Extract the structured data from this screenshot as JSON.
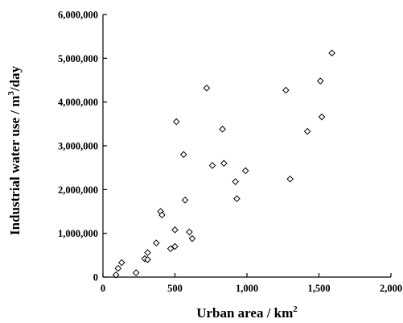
{
  "chart_data": {
    "type": "scatter",
    "title": "",
    "xlabel": "Urban area / km",
    "xlabel_sup": "2",
    "ylabel": "Industrial water use / m",
    "ylabel_sup": "3",
    "ylabel_tail": "/day",
    "xlim": [
      0,
      2000
    ],
    "ylim": [
      0,
      6000000
    ],
    "xticks": [
      0,
      500,
      1000,
      1500,
      2000
    ],
    "xtick_labels": [
      "0",
      "500",
      "1,000",
      "1,500",
      "2,000"
    ],
    "yticks": [
      0,
      1000000,
      2000000,
      3000000,
      4000000,
      5000000,
      6000000
    ],
    "ytick_labels": [
      "0",
      "1,000,000",
      "2,000,000",
      "3,000,000",
      "4,000,000",
      "5,000,000",
      "6,000,000"
    ],
    "grid": false,
    "legend": "none",
    "marker": "open-diamond",
    "series": [
      {
        "points": [
          {
            "x": 90,
            "y": 50000
          },
          {
            "x": 105,
            "y": 200000
          },
          {
            "x": 130,
            "y": 330000
          },
          {
            "x": 230,
            "y": 100000
          },
          {
            "x": 290,
            "y": 420000
          },
          {
            "x": 310,
            "y": 400000
          },
          {
            "x": 310,
            "y": 560000
          },
          {
            "x": 370,
            "y": 780000
          },
          {
            "x": 400,
            "y": 1500000
          },
          {
            "x": 410,
            "y": 1420000
          },
          {
            "x": 470,
            "y": 650000
          },
          {
            "x": 500,
            "y": 700000
          },
          {
            "x": 500,
            "y": 1080000
          },
          {
            "x": 510,
            "y": 3550000
          },
          {
            "x": 560,
            "y": 2800000
          },
          {
            "x": 570,
            "y": 1760000
          },
          {
            "x": 600,
            "y": 1030000
          },
          {
            "x": 620,
            "y": 880000
          },
          {
            "x": 720,
            "y": 4320000
          },
          {
            "x": 760,
            "y": 2550000
          },
          {
            "x": 830,
            "y": 3380000
          },
          {
            "x": 840,
            "y": 2600000
          },
          {
            "x": 920,
            "y": 2180000
          },
          {
            "x": 930,
            "y": 1790000
          },
          {
            "x": 990,
            "y": 2430000
          },
          {
            "x": 1270,
            "y": 4270000
          },
          {
            "x": 1300,
            "y": 2240000
          },
          {
            "x": 1420,
            "y": 3330000
          },
          {
            "x": 1510,
            "y": 4480000
          },
          {
            "x": 1520,
            "y": 3660000
          },
          {
            "x": 1590,
            "y": 5120000
          }
        ]
      }
    ]
  }
}
